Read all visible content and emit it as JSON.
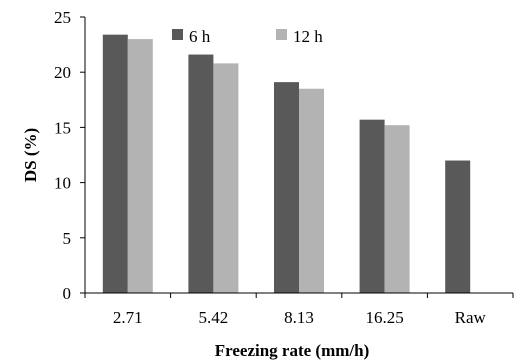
{
  "chart_data": {
    "type": "bar",
    "categories": [
      "2.71",
      "5.42",
      "8.13",
      "16.25",
      "Raw"
    ],
    "series": [
      {
        "name": "6 h",
        "color": "#595959",
        "values": [
          23.4,
          21.6,
          19.1,
          15.7,
          12.0
        ]
      },
      {
        "name": "12 h",
        "color": "#b3b3b3",
        "values": [
          23.0,
          20.8,
          18.5,
          15.2,
          null
        ]
      }
    ],
    "xlabel": "Freezing rate (mm/h)",
    "ylabel": "DS (%)",
    "ylim": [
      0,
      25
    ],
    "yticks": [
      "0",
      "5",
      "10",
      "15",
      "20",
      "25"
    ],
    "grid": false,
    "legend_position": "top-left"
  }
}
